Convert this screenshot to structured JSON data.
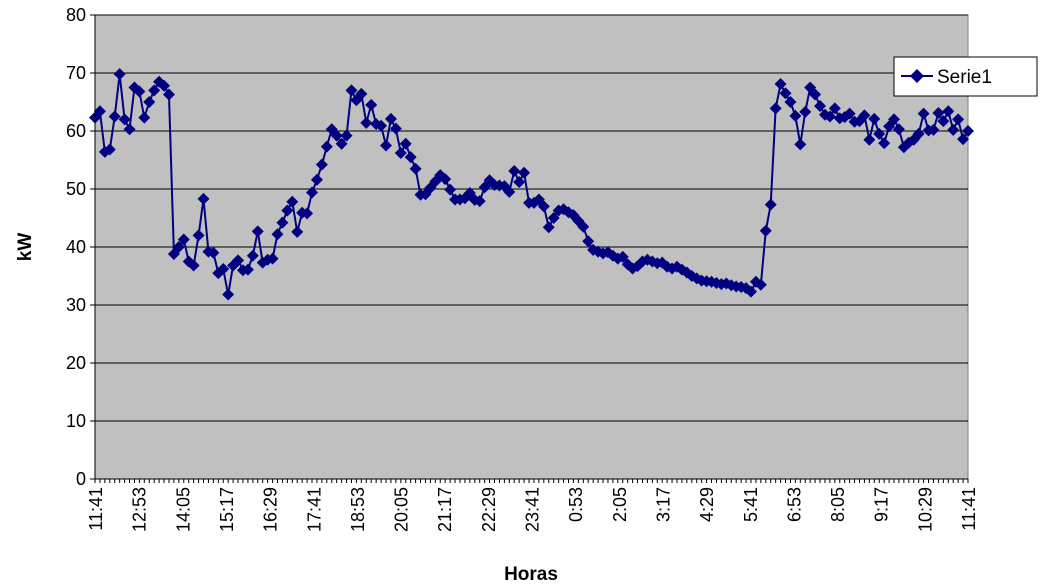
{
  "chart_data": {
    "type": "line",
    "xlabel": "Horas",
    "ylabel": "kW",
    "ylim": [
      0,
      80
    ],
    "yticks": [
      0,
      10,
      20,
      30,
      40,
      50,
      60,
      70,
      80
    ],
    "grid": "horizontal",
    "plot_background": "#c0c0c0",
    "legend": {
      "placement": "right",
      "entries": [
        "Serie1"
      ]
    },
    "x_tick_labels": [
      "11:41",
      "12:53",
      "14:05",
      "15:17",
      "16:29",
      "17:41",
      "18:53",
      "20:05",
      "21:17",
      "22:29",
      "23:41",
      "0:53",
      "2:05",
      "3:17",
      "4:29",
      "5:41",
      "6:53",
      "8:05",
      "9:17",
      "10:29",
      "11:41"
    ],
    "series": [
      {
        "name": "Serie1",
        "color": "#000080",
        "marker": "diamond",
        "values": [
          62.3,
          63.4,
          56.4,
          56.8,
          62.5,
          69.8,
          62.0,
          60.3,
          67.5,
          66.8,
          62.3,
          65.0,
          67.0,
          68.5,
          67.8,
          66.3,
          38.8,
          40.0,
          41.3,
          37.5,
          36.8,
          42.0,
          48.3,
          39.2,
          39.0,
          35.5,
          36.2,
          31.8,
          36.8,
          37.7,
          36.0,
          36.1,
          38.5,
          42.7,
          37.3,
          37.8,
          38.0,
          42.2,
          44.2,
          46.3,
          47.8,
          42.6,
          45.9,
          45.8,
          49.4,
          51.6,
          54.2,
          57.3,
          60.3,
          59.2,
          57.8,
          59.2,
          67.0,
          65.3,
          66.4,
          61.4,
          64.5,
          61.2,
          60.9,
          57.5,
          62.1,
          60.4,
          56.2,
          57.8,
          55.5,
          53.5,
          49.0,
          49.1,
          50.2,
          51.3,
          52.4,
          51.7,
          49.9,
          48.2,
          48.2,
          48.4,
          49.3,
          48.1,
          47.9,
          50.3,
          51.5,
          50.7,
          50.6,
          50.5,
          49.5,
          53.1,
          51.2,
          52.8,
          47.6,
          47.6,
          48.2,
          47.0,
          43.4,
          45.0,
          46.3,
          46.5,
          46.0,
          45.5,
          44.5,
          43.5,
          41.0,
          39.5,
          39.2,
          38.9,
          39.1,
          38.5,
          38.0,
          38.3,
          37.0,
          36.3,
          36.7,
          37.5,
          37.8,
          37.5,
          37.2,
          37.3,
          36.6,
          36.3,
          36.6,
          36.1,
          35.6,
          35.0,
          34.6,
          34.2,
          34.1,
          34.0,
          33.8,
          33.6,
          33.7,
          33.4,
          33.2,
          33.1,
          32.9,
          32.3,
          34.0,
          33.5,
          42.8,
          47.3,
          63.9,
          68.1,
          66.5,
          65.0,
          62.6,
          57.7,
          63.3,
          67.5,
          66.3,
          64.3,
          62.8,
          62.5,
          63.9,
          62.2,
          62.4,
          63.0,
          61.6,
          61.7,
          62.7,
          58.5,
          62.1,
          59.5,
          57.9,
          60.8,
          62.0,
          60.3,
          57.2,
          58.0,
          58.5,
          59.5,
          63.0,
          60.1,
          60.2,
          63.1,
          61.7,
          63.4,
          60.2,
          62.0,
          58.6,
          60.0
        ]
      }
    ]
  }
}
